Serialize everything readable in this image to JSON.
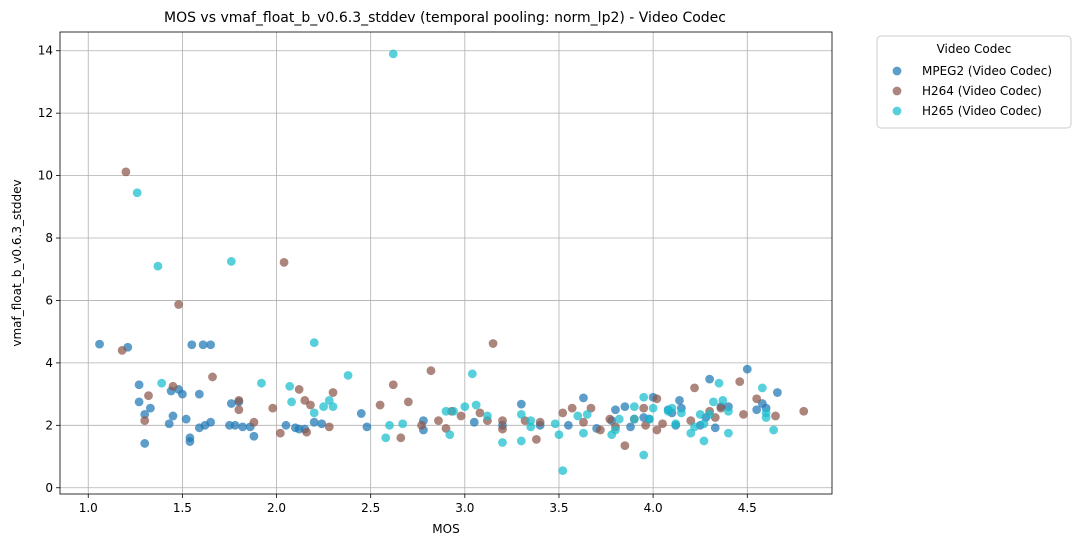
{
  "chart_data": {
    "type": "scatter",
    "title": "MOS vs vmaf_float_b_v0.6.3_stddev (temporal pooling: norm_lp2) - Video Codec",
    "xlabel": "MOS",
    "ylabel": "vmaf_float_b_v0.6.3_stddev",
    "xlim": [
      0.85,
      4.95
    ],
    "ylim": [
      -0.2,
      14.6
    ],
    "xticks": [
      1.0,
      1.5,
      2.0,
      2.5,
      3.0,
      3.5,
      4.0,
      4.5
    ],
    "xtick_labels": [
      "1.0",
      "1.5",
      "2.0",
      "2.5",
      "3.0",
      "3.5",
      "4.0",
      "4.5"
    ],
    "yticks": [
      0,
      2,
      4,
      6,
      8,
      10,
      12,
      14
    ],
    "ytick_labels": [
      "0",
      "2",
      "4",
      "6",
      "8",
      "10",
      "12",
      "14"
    ],
    "grid": true,
    "legend": {
      "title": "Video Codec",
      "placement": "outside-top-right"
    },
    "series": [
      {
        "name": "MPEG2 (Video Codec)",
        "color": "#1f77b4",
        "points": [
          [
            1.06,
            4.6
          ],
          [
            1.21,
            4.5
          ],
          [
            1.27,
            3.3
          ],
          [
            1.27,
            2.75
          ],
          [
            1.3,
            2.35
          ],
          [
            1.3,
            1.42
          ],
          [
            1.33,
            2.55
          ],
          [
            1.43,
            2.05
          ],
          [
            1.44,
            3.1
          ],
          [
            1.45,
            2.3
          ],
          [
            1.48,
            3.15
          ],
          [
            1.5,
            3.0
          ],
          [
            1.52,
            2.2
          ],
          [
            1.54,
            1.6
          ],
          [
            1.54,
            1.48
          ],
          [
            1.55,
            4.58
          ],
          [
            1.59,
            3.0
          ],
          [
            1.59,
            1.92
          ],
          [
            1.61,
            4.58
          ],
          [
            1.62,
            2.0
          ],
          [
            1.65,
            4.58
          ],
          [
            1.65,
            2.1
          ],
          [
            1.75,
            2.0
          ],
          [
            1.76,
            2.7
          ],
          [
            1.78,
            2.0
          ],
          [
            1.8,
            2.75
          ],
          [
            1.82,
            1.95
          ],
          [
            1.86,
            1.95
          ],
          [
            1.88,
            1.65
          ],
          [
            2.05,
            2.0
          ],
          [
            2.1,
            1.92
          ],
          [
            2.12,
            1.88
          ],
          [
            2.15,
            1.88
          ],
          [
            2.2,
            2.1
          ],
          [
            2.24,
            2.05
          ],
          [
            2.45,
            2.38
          ],
          [
            2.48,
            1.95
          ],
          [
            2.78,
            1.85
          ],
          [
            2.78,
            2.15
          ],
          [
            3.05,
            2.1
          ],
          [
            3.2,
            2.0
          ],
          [
            3.3,
            2.68
          ],
          [
            3.4,
            2.0
          ],
          [
            3.55,
            2.0
          ],
          [
            3.63,
            2.88
          ],
          [
            3.7,
            1.9
          ],
          [
            3.78,
            2.15
          ],
          [
            3.8,
            2.5
          ],
          [
            3.85,
            2.6
          ],
          [
            3.88,
            1.95
          ],
          [
            3.95,
            2.25
          ],
          [
            3.98,
            2.2
          ],
          [
            4.0,
            2.9
          ],
          [
            4.08,
            2.5
          ],
          [
            4.1,
            2.4
          ],
          [
            4.12,
            2.0
          ],
          [
            4.14,
            2.8
          ],
          [
            4.15,
            2.55
          ],
          [
            4.25,
            2.0
          ],
          [
            4.28,
            2.25
          ],
          [
            4.3,
            3.48
          ],
          [
            4.33,
            1.92
          ],
          [
            4.36,
            2.6
          ],
          [
            4.4,
            2.6
          ],
          [
            4.5,
            3.8
          ],
          [
            4.55,
            2.5
          ],
          [
            4.58,
            2.7
          ],
          [
            4.6,
            2.55
          ],
          [
            4.66,
            3.05
          ]
        ]
      },
      {
        "name": "H264 (Video Codec)",
        "color": "#8c564b",
        "points": [
          [
            1.18,
            4.4
          ],
          [
            1.2,
            10.12
          ],
          [
            1.3,
            2.15
          ],
          [
            1.32,
            2.95
          ],
          [
            1.45,
            3.25
          ],
          [
            1.48,
            5.87
          ],
          [
            1.66,
            3.55
          ],
          [
            1.8,
            2.8
          ],
          [
            1.8,
            2.5
          ],
          [
            1.88,
            2.1
          ],
          [
            1.98,
            2.55
          ],
          [
            2.02,
            1.75
          ],
          [
            2.04,
            7.22
          ],
          [
            2.12,
            3.15
          ],
          [
            2.15,
            2.8
          ],
          [
            2.16,
            1.78
          ],
          [
            2.18,
            2.65
          ],
          [
            2.28,
            1.95
          ],
          [
            2.3,
            3.05
          ],
          [
            2.55,
            2.65
          ],
          [
            2.62,
            3.3
          ],
          [
            2.66,
            1.6
          ],
          [
            2.7,
            2.75
          ],
          [
            2.77,
            2.0
          ],
          [
            2.82,
            3.75
          ],
          [
            2.86,
            2.15
          ],
          [
            2.9,
            1.9
          ],
          [
            2.93,
            2.45
          ],
          [
            2.98,
            2.3
          ],
          [
            3.08,
            2.4
          ],
          [
            3.12,
            2.15
          ],
          [
            3.15,
            4.62
          ],
          [
            3.2,
            2.15
          ],
          [
            3.2,
            1.88
          ],
          [
            3.32,
            2.15
          ],
          [
            3.38,
            1.55
          ],
          [
            3.4,
            2.1
          ],
          [
            3.52,
            2.4
          ],
          [
            3.57,
            2.55
          ],
          [
            3.63,
            2.1
          ],
          [
            3.67,
            2.55
          ],
          [
            3.72,
            1.85
          ],
          [
            3.77,
            2.2
          ],
          [
            3.8,
            1.95
          ],
          [
            3.85,
            1.35
          ],
          [
            3.9,
            2.2
          ],
          [
            3.95,
            2.55
          ],
          [
            3.96,
            2.0
          ],
          [
            4.02,
            2.85
          ],
          [
            4.02,
            1.85
          ],
          [
            4.05,
            2.05
          ],
          [
            4.2,
            2.15
          ],
          [
            4.22,
            3.2
          ],
          [
            4.3,
            2.45
          ],
          [
            4.33,
            2.25
          ],
          [
            4.36,
            2.55
          ],
          [
            4.46,
            3.4
          ],
          [
            4.48,
            2.35
          ],
          [
            4.55,
            2.85
          ],
          [
            4.65,
            2.3
          ],
          [
            4.8,
            2.45
          ]
        ]
      },
      {
        "name": "H265 (Video Codec)",
        "color": "#17becf",
        "points": [
          [
            1.26,
            9.45
          ],
          [
            1.37,
            7.1
          ],
          [
            1.39,
            3.35
          ],
          [
            1.76,
            7.25
          ],
          [
            1.92,
            3.35
          ],
          [
            2.07,
            3.25
          ],
          [
            2.08,
            2.75
          ],
          [
            2.2,
            4.65
          ],
          [
            2.2,
            2.4
          ],
          [
            2.25,
            2.6
          ],
          [
            2.28,
            2.8
          ],
          [
            2.3,
            2.6
          ],
          [
            2.38,
            3.6
          ],
          [
            2.58,
            1.6
          ],
          [
            2.6,
            2.0
          ],
          [
            2.62,
            13.9
          ],
          [
            2.67,
            2.05
          ],
          [
            2.9,
            2.45
          ],
          [
            2.92,
            1.7
          ],
          [
            2.94,
            2.45
          ],
          [
            3.0,
            2.6
          ],
          [
            3.04,
            3.65
          ],
          [
            3.06,
            2.65
          ],
          [
            3.12,
            2.3
          ],
          [
            3.2,
            1.45
          ],
          [
            3.3,
            2.35
          ],
          [
            3.3,
            1.5
          ],
          [
            3.35,
            2.15
          ],
          [
            3.35,
            1.95
          ],
          [
            3.48,
            2.05
          ],
          [
            3.5,
            1.7
          ],
          [
            3.52,
            0.55
          ],
          [
            3.6,
            2.3
          ],
          [
            3.63,
            1.75
          ],
          [
            3.65,
            2.35
          ],
          [
            3.78,
            1.7
          ],
          [
            3.8,
            1.85
          ],
          [
            3.82,
            2.2
          ],
          [
            3.9,
            2.6
          ],
          [
            3.9,
            2.2
          ],
          [
            3.95,
            2.9
          ],
          [
            3.95,
            1.05
          ],
          [
            3.98,
            2.2
          ],
          [
            4.0,
            2.55
          ],
          [
            4.08,
            2.45
          ],
          [
            4.1,
            2.55
          ],
          [
            4.12,
            2.05
          ],
          [
            4.15,
            2.4
          ],
          [
            4.2,
            1.75
          ],
          [
            4.22,
            1.95
          ],
          [
            4.25,
            2.35
          ],
          [
            4.27,
            2.05
          ],
          [
            4.27,
            1.5
          ],
          [
            4.3,
            2.35
          ],
          [
            4.32,
            2.75
          ],
          [
            4.35,
            3.35
          ],
          [
            4.37,
            2.8
          ],
          [
            4.4,
            2.45
          ],
          [
            4.4,
            1.75
          ],
          [
            4.58,
            3.2
          ],
          [
            4.6,
            2.4
          ],
          [
            4.6,
            2.25
          ],
          [
            4.64,
            1.85
          ]
        ]
      }
    ]
  }
}
